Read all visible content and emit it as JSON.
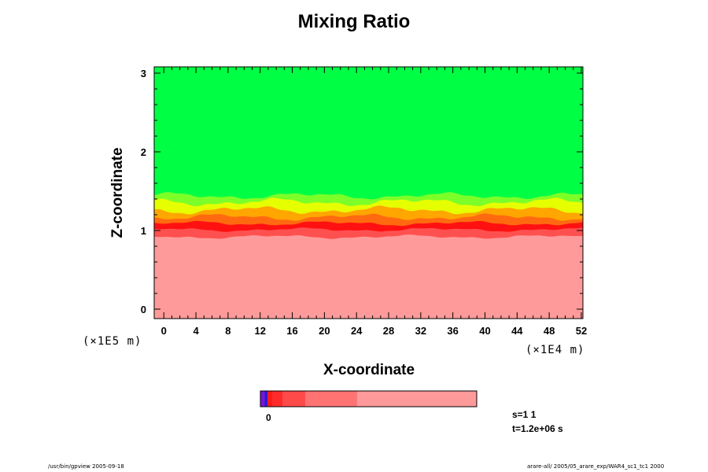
{
  "chart_data": {
    "type": "heatmap",
    "title": "Mixing Ratio",
    "xlabel": "X-coordinate",
    "ylabel": "Z-coordinate",
    "x_unit": "(×1E4 m)",
    "y_unit": "(×1E5 m)",
    "xlim": [
      -1.2,
      52.2
    ],
    "ylim": [
      -0.12,
      3.08
    ],
    "x_ticks": [
      0,
      4,
      8,
      12,
      16,
      20,
      24,
      28,
      32,
      36,
      40,
      44,
      48,
      52
    ],
    "y_ticks": [
      0,
      1,
      2,
      3
    ],
    "grid": false,
    "field_layers": [
      {
        "name": "upper",
        "color": "#00ff44"
      },
      {
        "name": "transition-light-green",
        "color": "#7cff28"
      },
      {
        "name": "transition-yellow",
        "color": "#e6ff00"
      },
      {
        "name": "transition-orange",
        "color": "#ffa600"
      },
      {
        "name": "transition-dark-orange",
        "color": "#ff6a10"
      },
      {
        "name": "peak-red",
        "color": "#ff1111"
      },
      {
        "name": "lower-red",
        "color": "#ff5050"
      },
      {
        "name": "lower",
        "color": "#ff9a9a"
      }
    ],
    "colorbar": {
      "tick_label": "0",
      "segments": [
        {
          "color": "#7c12d8",
          "fraction": 0.02
        },
        {
          "color": "#2a1bd0",
          "fraction": 0.013
        },
        {
          "color": "#ff1a1a",
          "fraction": 0.022
        },
        {
          "color": "#ff2b2b",
          "fraction": 0.047
        },
        {
          "color": "#ff4a4a",
          "fraction": 0.105
        },
        {
          "color": "#ff7373",
          "fraction": 0.24
        },
        {
          "color": "#ff9a9a",
          "fraction": 0.553
        }
      ]
    },
    "annotations": {
      "step": "s=1 1",
      "time": "t=1.2e+06 s"
    }
  },
  "footer": {
    "left": "/usr/bin/gpview 2005-09-18",
    "right": "arare-all/ 2005/05_arare_exp/WAR4_sc1_tc1 2000"
  }
}
